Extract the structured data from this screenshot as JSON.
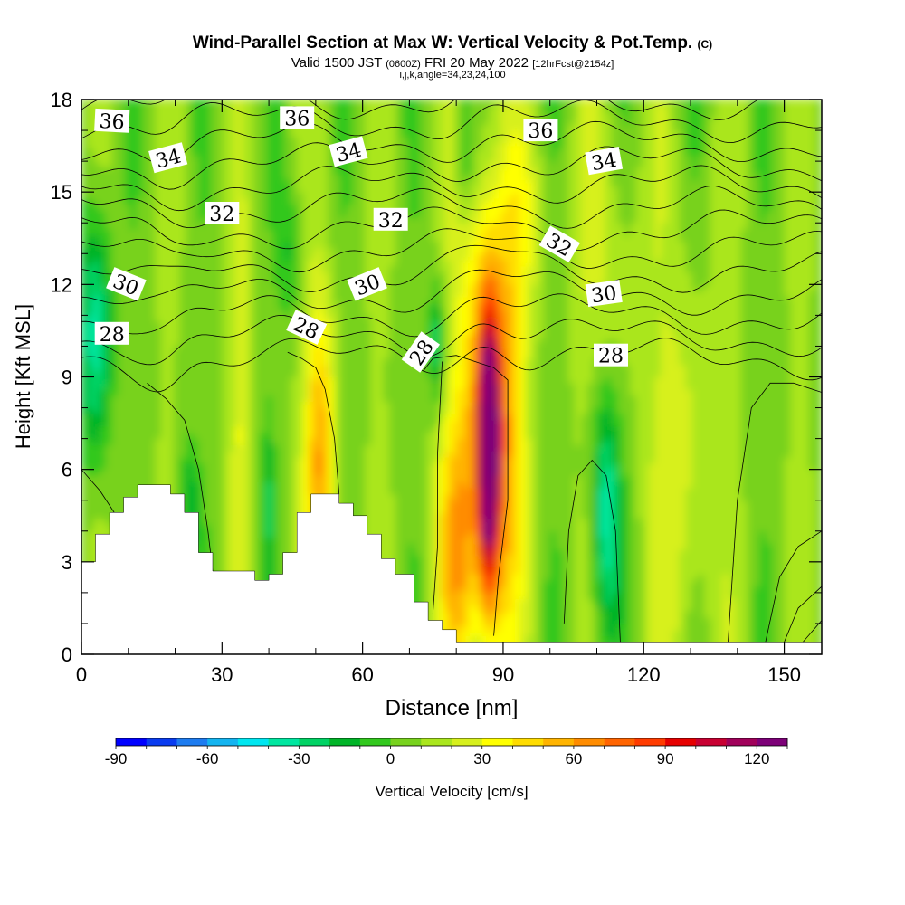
{
  "title": {
    "main": "Wind-Parallel Section at Max W: Vertical Velocity & Pot.Temp.",
    "main_suffix": "(C)",
    "valid_pre": "Valid 1500 JST",
    "valid_z": "(0600Z)",
    "valid_date": "FRI 20 May 2022",
    "valid_fcst": "[12hrFcst@2154z]",
    "params": "i,j,k,angle=34,23,24,100"
  },
  "chart_data": {
    "type": "heatmap",
    "xlabel": "Distance [nm]",
    "ylabel": "Height [Kft MSL]",
    "xlim": [
      0,
      158
    ],
    "ylim": [
      0,
      18
    ],
    "x_ticks": [
      0,
      30,
      60,
      90,
      120,
      150
    ],
    "y_ticks": [
      0,
      3,
      6,
      9,
      12,
      15,
      18
    ],
    "colorbar": {
      "label": "Vertical Velocity [cm/s]",
      "range": [
        -90,
        130
      ],
      "step": 10,
      "ticks": [
        -90,
        -60,
        -30,
        0,
        30,
        60,
        90,
        120
      ],
      "colors": [
        "#0000ff",
        "#0a3cf0",
        "#1e7cf0",
        "#14b4f0",
        "#00e6f0",
        "#00e6a0",
        "#00d264",
        "#00b428",
        "#32c81e",
        "#78d21e",
        "#aae61e",
        "#d7f01e",
        "#ffff00",
        "#ffdc00",
        "#ffb400",
        "#ff8c00",
        "#ff6400",
        "#ff3c00",
        "#e60000",
        "#c80032",
        "#a0005a",
        "#7d0078"
      ]
    },
    "updraft_cores": [
      {
        "x": 87,
        "y": 6.5,
        "max_w": 125
      },
      {
        "x": 51,
        "y": 6.5,
        "max_w": 55
      },
      {
        "x": 80,
        "y": 3.5,
        "max_w": 45
      }
    ],
    "downdraft_cores": [
      {
        "x": 3,
        "y": 10.5,
        "min_w": -45
      },
      {
        "x": 112,
        "y": 4.5,
        "min_w": -35
      }
    ],
    "isentropes": {
      "label_values": [
        36,
        34,
        32,
        30,
        28
      ],
      "labels": [
        {
          "text": "36",
          "x": 6.5,
          "y": 17.3
        },
        {
          "text": "36",
          "x": 46,
          "y": 17.4
        },
        {
          "text": "36",
          "x": 98,
          "y": 17.0
        },
        {
          "text": "34",
          "x": 18.5,
          "y": 16.1
        },
        {
          "text": "34",
          "x": 57,
          "y": 16.3
        },
        {
          "text": "34",
          "x": 111.5,
          "y": 16.0
        },
        {
          "text": "32",
          "x": 30,
          "y": 14.3
        },
        {
          "text": "32",
          "x": 66,
          "y": 14.1
        },
        {
          "text": "32",
          "x": 102,
          "y": 13.3
        },
        {
          "text": "30",
          "x": 9.5,
          "y": 12.0
        },
        {
          "text": "30",
          "x": 61,
          "y": 12.0
        },
        {
          "text": "30",
          "x": 111.5,
          "y": 11.7
        },
        {
          "text": "28",
          "x": 6.5,
          "y": 10.4
        },
        {
          "text": "28",
          "x": 48,
          "y": 10.6
        },
        {
          "text": "28",
          "x": 72.5,
          "y": 9.8
        },
        {
          "text": "28",
          "x": 113,
          "y": 9.7
        }
      ]
    },
    "terrain": [
      [
        0,
        3.0
      ],
      [
        3,
        3.9
      ],
      [
        6,
        4.6
      ],
      [
        9,
        5.1
      ],
      [
        12,
        5.5
      ],
      [
        19,
        5.2
      ],
      [
        22,
        4.6
      ],
      [
        25,
        3.3
      ],
      [
        28,
        2.7
      ],
      [
        37,
        2.4
      ],
      [
        40,
        2.6
      ],
      [
        43,
        3.3
      ],
      [
        46,
        4.6
      ],
      [
        49,
        5.2
      ],
      [
        55,
        4.9
      ],
      [
        58,
        4.5
      ],
      [
        61,
        3.9
      ],
      [
        64,
        3.1
      ],
      [
        67,
        2.6
      ],
      [
        71,
        1.7
      ],
      [
        74,
        1.1
      ],
      [
        77,
        0.8
      ],
      [
        80,
        0.4
      ],
      [
        85,
        0.4
      ],
      [
        158,
        0.4
      ]
    ]
  }
}
